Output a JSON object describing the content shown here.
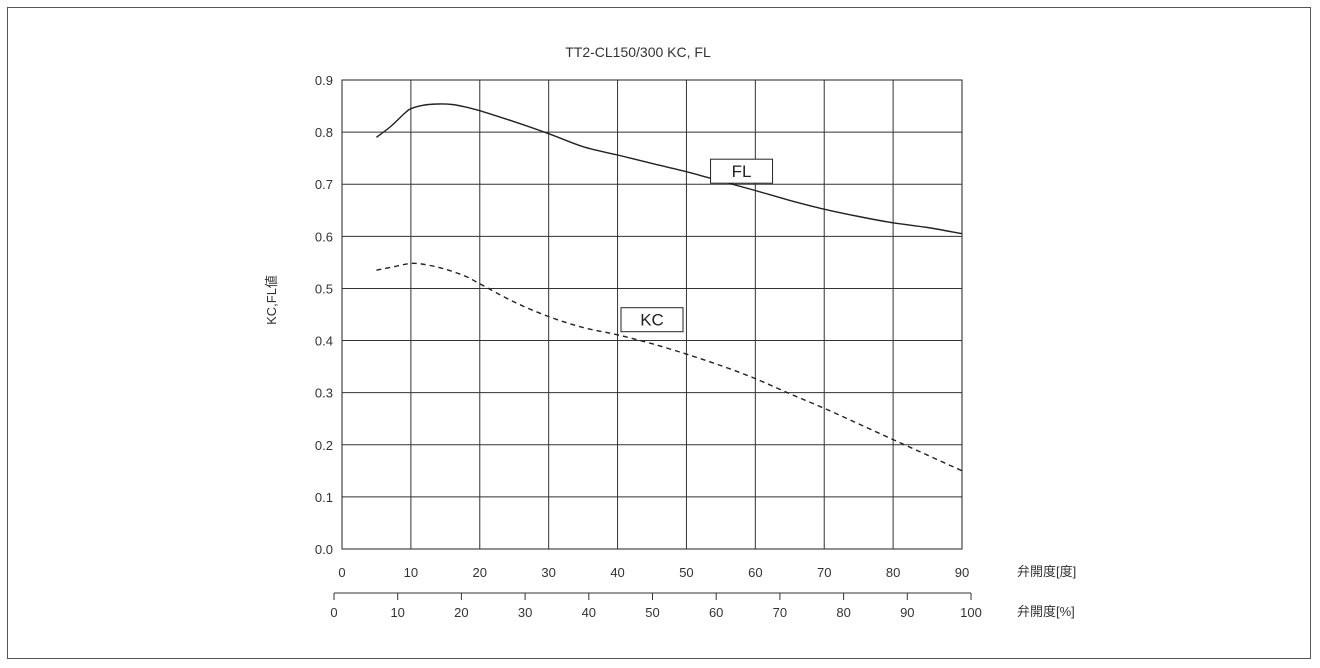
{
  "chart_data": {
    "type": "line",
    "title": "TT2-CL150/300 KC, FL",
    "ylabel": "KC,FL値",
    "xlabel": "弁開度[度]",
    "x2label": "弁開度[%]",
    "xlim": [
      0,
      90
    ],
    "ylim": [
      0.0,
      0.9
    ],
    "x2lim": [
      0,
      100
    ],
    "x_ticks": [
      "0",
      "10",
      "20",
      "30",
      "40",
      "50",
      "60",
      "70",
      "80",
      "90"
    ],
    "x2_ticks": [
      "0",
      "10",
      "20",
      "30",
      "40",
      "50",
      "60",
      "70",
      "80",
      "90",
      "100"
    ],
    "y_ticks": [
      "0.0",
      "0.1",
      "0.2",
      "0.3",
      "0.4",
      "0.5",
      "0.6",
      "0.7",
      "0.8",
      "0.9"
    ],
    "grid": true,
    "series": [
      {
        "name": "FL",
        "style": "solid",
        "color": "#222222",
        "x": [
          5,
          7,
          9,
          10,
          12,
          14,
          16,
          18,
          20,
          25,
          30,
          35,
          40,
          45,
          50,
          55,
          60,
          65,
          70,
          75,
          80,
          85,
          90
        ],
        "y": [
          0.79,
          0.81,
          0.835,
          0.845,
          0.852,
          0.854,
          0.853,
          0.848,
          0.841,
          0.82,
          0.797,
          0.772,
          0.756,
          0.74,
          0.724,
          0.706,
          0.688,
          0.669,
          0.652,
          0.638,
          0.626,
          0.617,
          0.605
        ]
      },
      {
        "name": "KC",
        "style": "dashed",
        "color": "#222222",
        "x": [
          5,
          8,
          10,
          12,
          15,
          18,
          20,
          25,
          30,
          35,
          40,
          45,
          50,
          55,
          60,
          65,
          70,
          75,
          80,
          85,
          90
        ],
        "y": [
          0.535,
          0.543,
          0.548,
          0.546,
          0.537,
          0.523,
          0.509,
          0.474,
          0.446,
          0.425,
          0.411,
          0.394,
          0.374,
          0.352,
          0.327,
          0.298,
          0.27,
          0.24,
          0.21,
          0.18,
          0.15
        ]
      }
    ]
  }
}
